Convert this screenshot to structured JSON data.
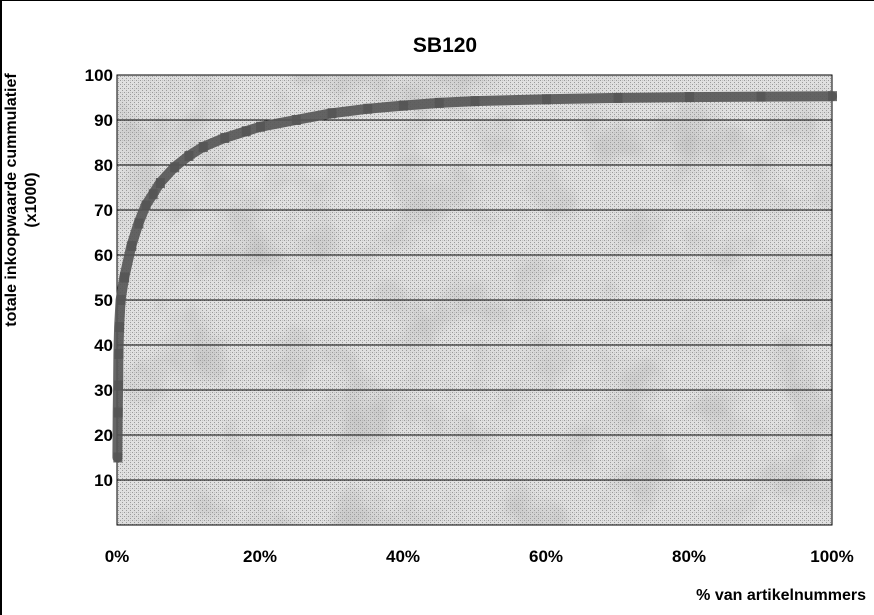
{
  "chart_data": {
    "type": "line",
    "title": "SB120",
    "xlabel": "% van artikelnummers",
    "ylabel_line1": "totale inkoopwaarde cummulatief",
    "ylabel_line2": "(x1000)",
    "xlim": [
      0,
      100
    ],
    "ylim": [
      0,
      100
    ],
    "x_ticks": [
      0,
      20,
      40,
      60,
      80,
      100
    ],
    "x_tick_labels": [
      "0%",
      "20%",
      "40%",
      "60%",
      "80%",
      "100%"
    ],
    "y_ticks": [
      10,
      20,
      30,
      40,
      50,
      60,
      70,
      80,
      90,
      100
    ],
    "y_tick_labels": [
      "10",
      "20",
      "30",
      "40",
      "50",
      "60",
      "70",
      "80",
      "90",
      "100"
    ],
    "grid": true,
    "series": [
      {
        "color": "#555555",
        "x": [
          0.05,
          0.1,
          0.15,
          0.2,
          0.3,
          0.5,
          1,
          2,
          3,
          4,
          5,
          6,
          8,
          10,
          12,
          15,
          18,
          20,
          25,
          30,
          35,
          40,
          45,
          50,
          60,
          70,
          80,
          90,
          100
        ],
        "y": [
          15,
          25,
          31,
          38,
          44,
          50,
          55,
          62,
          67,
          71,
          73.5,
          76,
          79.5,
          82,
          84,
          86,
          87.5,
          88.5,
          90,
          91.5,
          92.5,
          93.2,
          93.8,
          94.2,
          94.6,
          94.9,
          95.1,
          95.2,
          95.3
        ]
      }
    ]
  }
}
